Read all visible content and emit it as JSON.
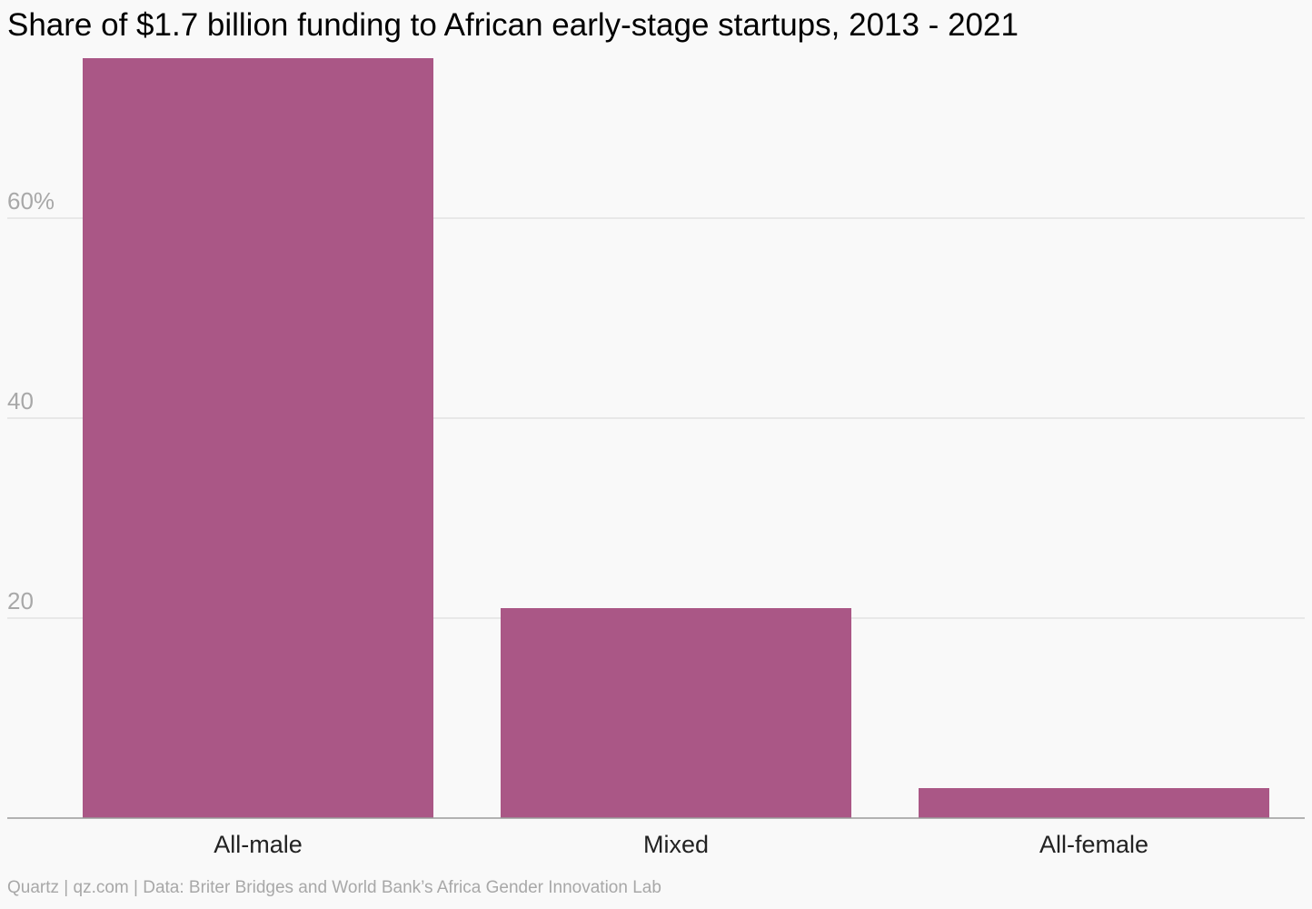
{
  "chart_data": {
    "type": "bar",
    "title": "Share of $1.7 billion funding to African early-stage startups, 2013 - 2021",
    "categories": [
      "All-male",
      "Mixed",
      "All-female"
    ],
    "values": [
      76,
      21,
      3
    ],
    "ylim": [
      0,
      76
    ],
    "yticks": [
      20,
      40,
      60
    ],
    "ytick_labels": [
      "20",
      "40",
      "60%"
    ],
    "xlabel": "",
    "ylabel": "",
    "grid": true,
    "legend": "none",
    "colors": {
      "bar": "#aa5786",
      "grid": "#e3e3e3",
      "axis": "#9a9a9a",
      "tick_text": "#a8a8a8",
      "category_text": "#222222"
    }
  },
  "footer": {
    "source": "Quartz | qz.com | Data: Briter Bridges and World Bank’s Africa Gender Innovation Lab"
  }
}
